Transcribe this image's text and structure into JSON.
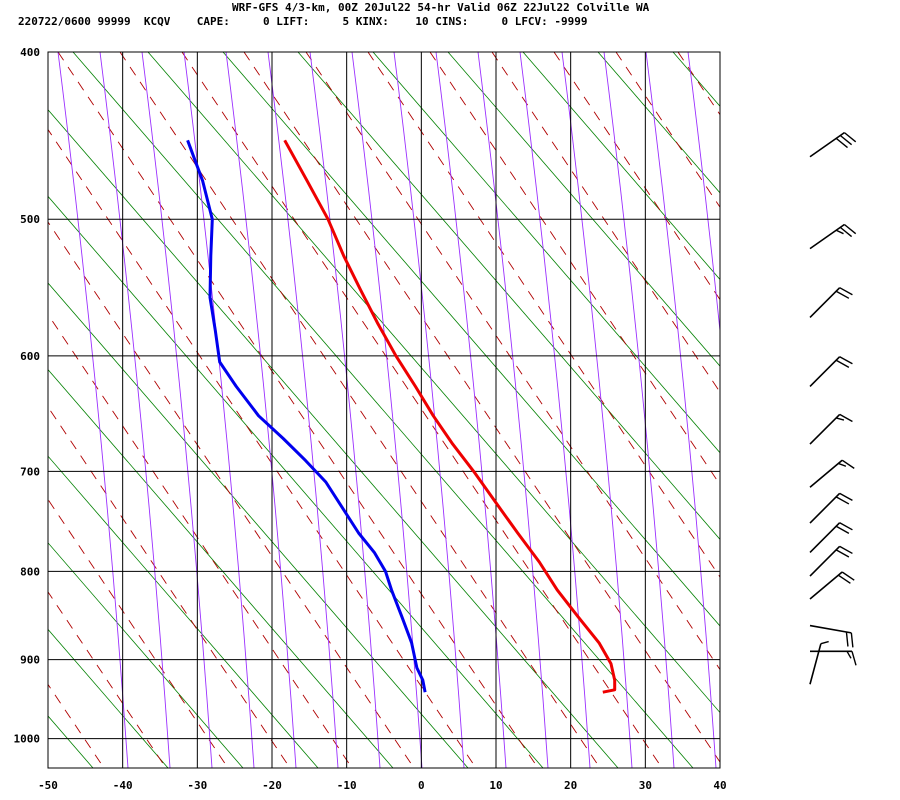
{
  "header": {
    "line1": "WRF-GFS 4/3-km, 00Z 20Jul22 54-hr Valid 06Z 22Jul22 Colville WA",
    "line2": "220722/0600 99999  KCQV    CAPE:     0 LIFT:     5 KINX:    10 CINS:     0 LFCV: -9999"
  },
  "chart_data": {
    "type": "line",
    "title": "WRF-GFS 4/3-km, 00Z 20Jul22 54-hr Valid 06Z 22Jul22 Colville WA",
    "xlabel": "",
    "ylabel": "",
    "xlim": [
      -50,
      40
    ],
    "ylim": [
      1040,
      400
    ],
    "y_scale": "log",
    "x_ticks": [
      "-50",
      "-40",
      "-30",
      "-20",
      "-10",
      "0",
      "10",
      "20",
      "30",
      "40"
    ],
    "y_ticks": [
      "400",
      "500",
      "600",
      "700",
      "800",
      "900",
      "1000"
    ],
    "grid": true,
    "series": [
      {
        "color": "#ee0000",
        "points": [
          {
            "p": 940,
            "x": 24.3
          },
          {
            "p": 937,
            "x": 25.9
          },
          {
            "p": 925,
            "x": 25.9
          },
          {
            "p": 905,
            "x": 25.4
          },
          {
            "p": 880,
            "x": 23.8
          },
          {
            "p": 850,
            "x": 21.0
          },
          {
            "p": 820,
            "x": 18.2
          },
          {
            "p": 790,
            "x": 15.8
          },
          {
            "p": 760,
            "x": 12.9
          },
          {
            "p": 730,
            "x": 10.0
          },
          {
            "p": 700,
            "x": 7.0
          },
          {
            "p": 675,
            "x": 4.2
          },
          {
            "p": 650,
            "x": 1.6
          },
          {
            "p": 625,
            "x": -0.8
          },
          {
            "p": 600,
            "x": -3.4
          },
          {
            "p": 575,
            "x": -5.8
          },
          {
            "p": 550,
            "x": -8.1
          },
          {
            "p": 525,
            "x": -10.4
          },
          {
            "p": 500,
            "x": -12.5
          },
          {
            "p": 475,
            "x": -15.3
          },
          {
            "p": 450,
            "x": -18.3
          }
        ]
      },
      {
        "color": "#0000ee",
        "points": [
          {
            "p": 940,
            "x": 0.5
          },
          {
            "p": 925,
            "x": 0.2
          },
          {
            "p": 910,
            "x": -0.6
          },
          {
            "p": 880,
            "x": -1.3
          },
          {
            "p": 850,
            "x": -2.6
          },
          {
            "p": 820,
            "x": -4.0
          },
          {
            "p": 800,
            "x": -4.8
          },
          {
            "p": 780,
            "x": -6.3
          },
          {
            "p": 760,
            "x": -8.4
          },
          {
            "p": 730,
            "x": -11.0
          },
          {
            "p": 710,
            "x": -12.8
          },
          {
            "p": 690,
            "x": -15.5
          },
          {
            "p": 670,
            "x": -18.5
          },
          {
            "p": 650,
            "x": -21.8
          },
          {
            "p": 625,
            "x": -24.8
          },
          {
            "p": 605,
            "x": -27.0
          },
          {
            "p": 580,
            "x": -27.6
          },
          {
            "p": 555,
            "x": -28.3
          },
          {
            "p": 525,
            "x": -28.2
          },
          {
            "p": 500,
            "x": -28.0
          },
          {
            "p": 475,
            "x": -29.3
          },
          {
            "p": 450,
            "x": -31.3
          }
        ]
      }
    ],
    "background_lines": {
      "isotherm_grid_color": "#000000",
      "dry_adiabat_color": "#008000",
      "moist_adiabat_color": "#9b30ff",
      "mixing_ratio_color": "#b00000"
    },
    "wind_barbs": [
      {
        "p": 930,
        "direction_deg": 195,
        "speed_kt": 5
      },
      {
        "p": 890,
        "direction_deg": 270,
        "speed_kt": 15
      },
      {
        "p": 860,
        "direction_deg": 280,
        "speed_kt": 20
      },
      {
        "p": 830,
        "direction_deg": 230,
        "speed_kt": 20
      },
      {
        "p": 805,
        "direction_deg": 225,
        "speed_kt": 20
      },
      {
        "p": 780,
        "direction_deg": 225,
        "speed_kt": 20
      },
      {
        "p": 750,
        "direction_deg": 225,
        "speed_kt": 20
      },
      {
        "p": 715,
        "direction_deg": 230,
        "speed_kt": 15
      },
      {
        "p": 675,
        "direction_deg": 225,
        "speed_kt": 15
      },
      {
        "p": 625,
        "direction_deg": 225,
        "speed_kt": 20
      },
      {
        "p": 570,
        "direction_deg": 225,
        "speed_kt": 20
      },
      {
        "p": 520,
        "direction_deg": 235,
        "speed_kt": 25
      },
      {
        "p": 460,
        "direction_deg": 235,
        "speed_kt": 30
      }
    ]
  }
}
